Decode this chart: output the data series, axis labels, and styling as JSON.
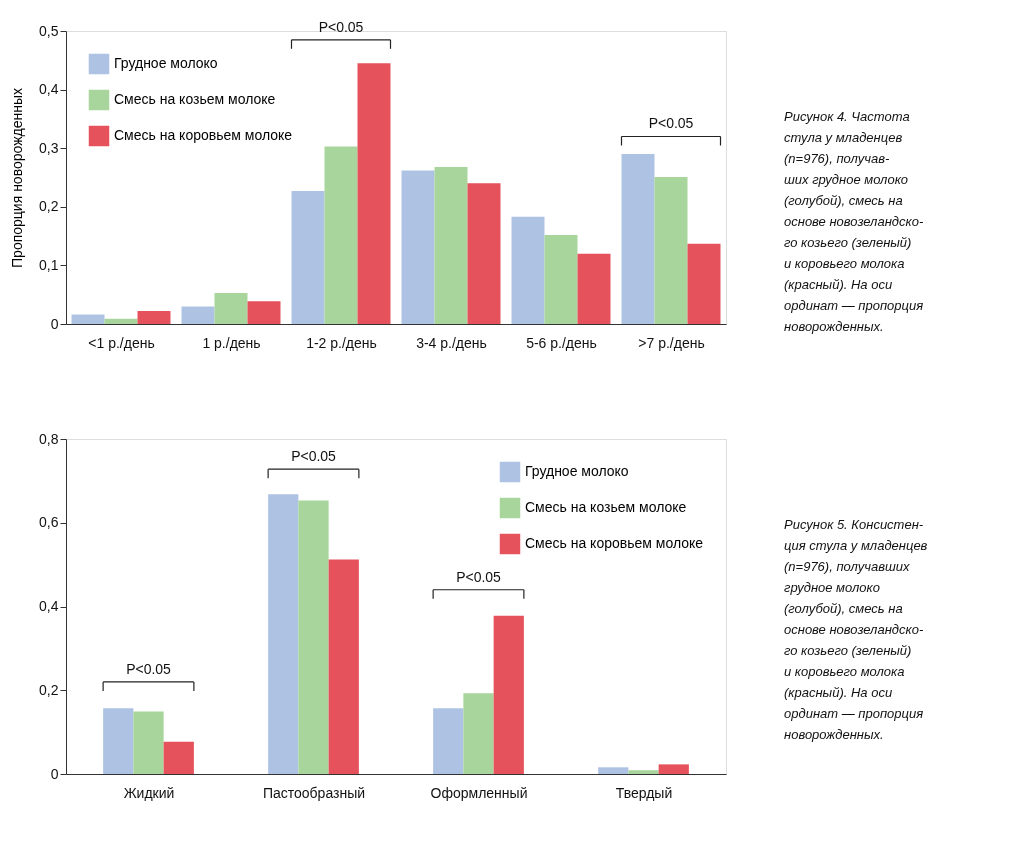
{
  "chart_data": [
    {
      "type": "bar",
      "categories": [
        "<1 р./день",
        "1 р./день",
        "1-2 р./день",
        "3-4 р./день",
        "5-6 р./день",
        ">7 р./день"
      ],
      "series": [
        {
          "name": "Грудное молоко",
          "color": "#aec3e3",
          "values": [
            0.016,
            0.03,
            0.227,
            0.262,
            0.183,
            0.29
          ]
        },
        {
          "name": "Смесь на козьем молоке",
          "color": "#a8d59b",
          "values": [
            0.009,
            0.053,
            0.303,
            0.268,
            0.152,
            0.251
          ]
        },
        {
          "name": "Смесь на коровьем молоке",
          "color": "#e5525c",
          "values": [
            0.022,
            0.039,
            0.445,
            0.24,
            0.12,
            0.137
          ]
        }
      ],
      "ylabel": "Пропорция новорожденных",
      "ylim": [
        0,
        0.5
      ],
      "yticks": [
        0,
        {
          "value": 0.1,
          "label": "0,1"
        },
        {
          "value": 0.2,
          "label": "0,2"
        },
        {
          "value": 0.3,
          "label": "0,3"
        },
        {
          "value": 0.4,
          "label": "0,4"
        },
        {
          "value": 0.5,
          "label": "0,5"
        }
      ],
      "grid": false,
      "legend": "top left",
      "annotations": [
        "P<0.05",
        "P<0.05",
        "Рисунок 4. Частота\nстула у младенцев\n(n=976), получав-\nших грудное молоко\n(голубой), смесь на\nоснове новозеландско-\nго козьего (зеленый)\nи коровьего молока\n(красный). На оси\nординат — пропорция\nноворожденных."
      ]
    },
    {
      "type": "bar",
      "categories": [
        "Жидкий",
        "Пастообразный",
        "Оформленный",
        "Твердый"
      ],
      "series": [
        {
          "name": "Грудное молоко",
          "color": "#aec3e3",
          "values": [
            0.157,
            0.668,
            0.157,
            0.016
          ]
        },
        {
          "name": "Смесь на козьем молоке",
          "color": "#a8d59b",
          "values": [
            0.149,
            0.653,
            0.193,
            0.009
          ]
        },
        {
          "name": "Смесь на коровьем молоке",
          "color": "#e5525c",
          "values": [
            0.077,
            0.512,
            0.378,
            0.023
          ]
        }
      ],
      "ylim": [
        0,
        0.8
      ],
      "yticks": [
        0,
        {
          "value": 0.2,
          "label": "0,2"
        },
        {
          "value": 0.4,
          "label": "0,4"
        },
        {
          "value": 0.6,
          "label": "0,6"
        },
        {
          "value": 0.8,
          "label": "0,8"
        }
      ],
      "grid": false,
      "legend": "top right",
      "annotations": [
        "P<0.05",
        "P<0.05",
        "P<0.05",
        "Рисунок 5. Консистен-\nция стула у младенцев\n(n=976), получавших\nгрудное молоко\n(голубой), смесь на\nоснове новозеландско-\nго козьего (зеленый)\nи коровьего молока\n(красный). На оси\nординат — пропорция\nноворожденных."
      ]
    }
  ]
}
